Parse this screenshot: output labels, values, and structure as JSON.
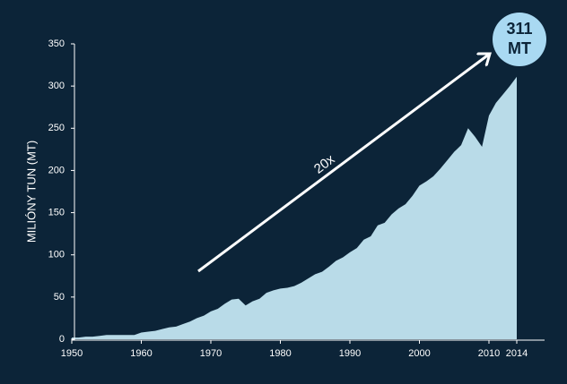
{
  "chart_data": {
    "type": "area",
    "y_label": "MILIÓNY TUN (MT)",
    "annotation": "20x",
    "end_label": [
      "311",
      "MT"
    ],
    "color": "#b9dbe8",
    "x": [
      1950,
      1951,
      1952,
      1953,
      1954,
      1955,
      1956,
      1957,
      1958,
      1959,
      1960,
      1961,
      1962,
      1963,
      1964,
      1965,
      1966,
      1967,
      1968,
      1969,
      1970,
      1971,
      1972,
      1973,
      1974,
      1975,
      1976,
      1977,
      1978,
      1979,
      1980,
      1981,
      1982,
      1983,
      1984,
      1985,
      1986,
      1987,
      1988,
      1989,
      1990,
      1991,
      1992,
      1993,
      1994,
      1995,
      1996,
      1997,
      1998,
      1999,
      2000,
      2001,
      2002,
      2003,
      2004,
      2005,
      2006,
      2007,
      2008,
      2009,
      2010,
      2011,
      2012,
      2013,
      2014
    ],
    "values": [
      2,
      2,
      3,
      3,
      4,
      5,
      5,
      5,
      5,
      5,
      8,
      9,
      10,
      12,
      14,
      15,
      18,
      21,
      25,
      28,
      33,
      36,
      42,
      47,
      48,
      40,
      45,
      48,
      55,
      58,
      60,
      61,
      63,
      67,
      72,
      77,
      80,
      86,
      93,
      97,
      103,
      108,
      118,
      122,
      135,
      138,
      148,
      155,
      160,
      170,
      182,
      187,
      193,
      202,
      212,
      222,
      230,
      250,
      240,
      228,
      265,
      280,
      290,
      300,
      311
    ],
    "xlim": [
      1950,
      2018
    ],
    "ylim": [
      0,
      350
    ],
    "xticks": [
      1950,
      1960,
      1970,
      1980,
      1990,
      2000,
      2010,
      2014
    ],
    "yticks": [
      0,
      50,
      100,
      150,
      200,
      250,
      300,
      350
    ]
  }
}
